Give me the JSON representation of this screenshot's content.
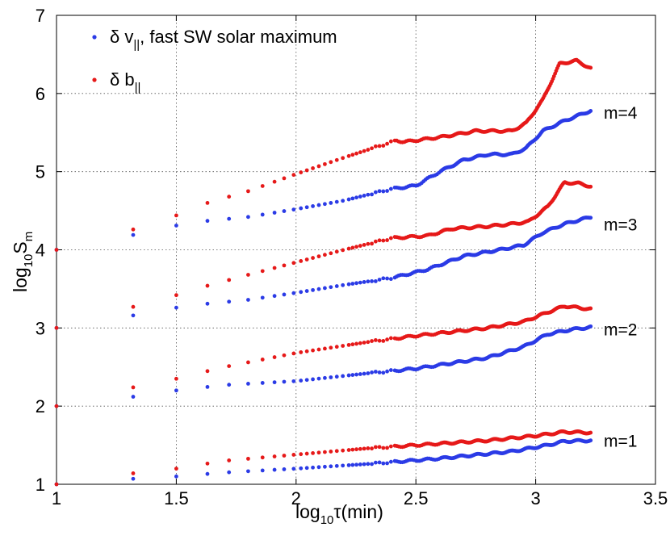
{
  "chart_data": {
    "type": "scatter",
    "title": "",
    "xlabel": {
      "base": "log",
      "sub": "10",
      "rest": "τ(min)"
    },
    "ylabel": {
      "base": "log",
      "sub": "10",
      "rest": "S",
      "sub2": "m"
    },
    "xlim": [
      1,
      3.5
    ],
    "ylim": [
      1,
      7
    ],
    "xticks": [
      1,
      1.5,
      2,
      2.5,
      3,
      3.5
    ],
    "xtick_labels": [
      "1",
      "1.5",
      "2",
      "2.5",
      "3",
      "3.5"
    ],
    "yticks": [
      1,
      2,
      3,
      4,
      5,
      6,
      7
    ],
    "ytick_labels": [
      "1",
      "2",
      "3",
      "4",
      "5",
      "6",
      "7"
    ],
    "grid": true,
    "legend_position": "top-left",
    "legend": [
      {
        "name": "δ v",
        "sub": "||",
        "suffix": ", fast SW solar maximum",
        "color": "#2b3be6"
      },
      {
        "name": "δ b",
        "sub": "||",
        "suffix": "",
        "color": "#e61919"
      }
    ],
    "annotations": [
      "m=4",
      "m=3",
      "m=2",
      "m=1"
    ],
    "annotation_y": [
      5.75,
      4.32,
      2.98,
      1.55
    ],
    "x_start": 1.32,
    "x_end": 3.23,
    "sparse_x": [
      1.32,
      1.5,
      1.63,
      1.72,
      1.8,
      1.86,
      1.91,
      1.95,
      1.99
    ],
    "series": [
      {
        "name": "δ v|| m=1",
        "group": "v",
        "color": "#2b3be6",
        "points": [
          [
            1.0,
            1.0
          ],
          [
            1.32,
            1.07
          ],
          [
            1.5,
            1.1
          ],
          [
            1.7,
            1.15
          ],
          [
            2.0,
            1.2
          ],
          [
            2.3,
            1.26
          ],
          [
            2.6,
            1.33
          ],
          [
            2.9,
            1.42
          ],
          [
            3.05,
            1.5
          ],
          [
            3.12,
            1.55
          ],
          [
            3.23,
            1.56
          ]
        ]
      },
      {
        "name": "δ b|| m=1",
        "group": "b",
        "color": "#e61919",
        "points": [
          [
            1.0,
            1.0
          ],
          [
            1.32,
            1.14
          ],
          [
            1.5,
            1.2
          ],
          [
            1.7,
            1.3
          ],
          [
            2.0,
            1.38
          ],
          [
            2.3,
            1.46
          ],
          [
            2.5,
            1.5
          ],
          [
            2.8,
            1.56
          ],
          [
            3.0,
            1.62
          ],
          [
            3.12,
            1.67
          ],
          [
            3.23,
            1.66
          ]
        ]
      },
      {
        "name": "δ v|| m=2",
        "group": "v",
        "color": "#2b3be6",
        "points": [
          [
            1.0,
            2.0
          ],
          [
            1.32,
            2.12
          ],
          [
            1.5,
            2.2
          ],
          [
            1.7,
            2.27
          ],
          [
            2.0,
            2.32
          ],
          [
            2.3,
            2.42
          ],
          [
            2.5,
            2.48
          ],
          [
            2.8,
            2.62
          ],
          [
            2.95,
            2.76
          ],
          [
            3.05,
            2.92
          ],
          [
            3.15,
            2.98
          ],
          [
            3.23,
            3.01
          ]
        ]
      },
      {
        "name": "δ b|| m=2",
        "group": "b",
        "color": "#e61919",
        "points": [
          [
            1.0,
            2.0
          ],
          [
            1.32,
            2.24
          ],
          [
            1.5,
            2.35
          ],
          [
            1.7,
            2.5
          ],
          [
            2.0,
            2.68
          ],
          [
            2.3,
            2.82
          ],
          [
            2.5,
            2.9
          ],
          [
            2.8,
            3.0
          ],
          [
            2.95,
            3.08
          ],
          [
            3.05,
            3.2
          ],
          [
            3.12,
            3.28
          ],
          [
            3.23,
            3.24
          ]
        ]
      },
      {
        "name": "δ v|| m=3",
        "group": "v",
        "color": "#2b3be6",
        "points": [
          [
            1.0,
            3.0
          ],
          [
            1.32,
            3.16
          ],
          [
            1.5,
            3.26
          ],
          [
            1.63,
            3.31
          ],
          [
            1.8,
            3.36
          ],
          [
            2.0,
            3.45
          ],
          [
            2.2,
            3.55
          ],
          [
            2.4,
            3.64
          ],
          [
            2.55,
            3.75
          ],
          [
            2.7,
            3.92
          ],
          [
            2.85,
            4.0
          ],
          [
            2.95,
            4.06
          ],
          [
            3.03,
            4.22
          ],
          [
            3.12,
            4.33
          ],
          [
            3.23,
            4.42
          ]
        ]
      },
      {
        "name": "δ b|| m=3",
        "group": "b",
        "color": "#e61919",
        "points": [
          [
            1.0,
            3.0
          ],
          [
            1.32,
            3.27
          ],
          [
            1.5,
            3.42
          ],
          [
            1.63,
            3.54
          ],
          [
            1.8,
            3.68
          ],
          [
            2.0,
            3.84
          ],
          [
            2.2,
            4.0
          ],
          [
            2.4,
            4.15
          ],
          [
            2.55,
            4.18
          ],
          [
            2.65,
            4.27
          ],
          [
            2.8,
            4.3
          ],
          [
            2.9,
            4.33
          ],
          [
            2.97,
            4.36
          ],
          [
            3.05,
            4.55
          ],
          [
            3.12,
            4.86
          ],
          [
            3.18,
            4.85
          ],
          [
            3.23,
            4.81
          ]
        ]
      },
      {
        "name": "δ v|| m=4",
        "group": "v",
        "color": "#2b3be6",
        "points": [
          [
            1.0,
            4.0
          ],
          [
            1.32,
            4.19
          ],
          [
            1.5,
            4.31
          ],
          [
            1.63,
            4.37
          ],
          [
            1.8,
            4.42
          ],
          [
            2.0,
            4.52
          ],
          [
            2.2,
            4.63
          ],
          [
            2.4,
            4.78
          ],
          [
            2.5,
            4.82
          ],
          [
            2.6,
            5.0
          ],
          [
            2.7,
            5.15
          ],
          [
            2.8,
            5.22
          ],
          [
            2.9,
            5.22
          ],
          [
            2.96,
            5.3
          ],
          [
            3.03,
            5.52
          ],
          [
            3.12,
            5.65
          ],
          [
            3.23,
            5.78
          ]
        ]
      },
      {
        "name": "δ b|| m=4",
        "group": "b",
        "color": "#e61919",
        "points": [
          [
            1.0,
            4.0
          ],
          [
            1.32,
            4.26
          ],
          [
            1.5,
            4.44
          ],
          [
            1.63,
            4.6
          ],
          [
            1.8,
            4.75
          ],
          [
            2.0,
            4.97
          ],
          [
            2.2,
            5.18
          ],
          [
            2.35,
            5.33
          ],
          [
            2.42,
            5.4
          ],
          [
            2.45,
            5.38
          ],
          [
            2.6,
            5.44
          ],
          [
            2.75,
            5.52
          ],
          [
            2.9,
            5.52
          ],
          [
            2.96,
            5.62
          ],
          [
            3.03,
            5.92
          ],
          [
            3.1,
            6.38
          ],
          [
            3.17,
            6.42
          ],
          [
            3.23,
            6.32
          ]
        ]
      }
    ]
  }
}
